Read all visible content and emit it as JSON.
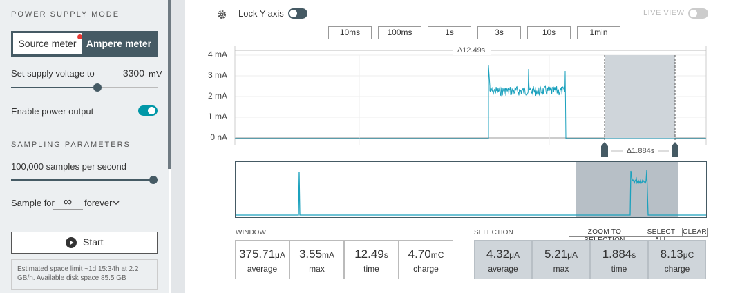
{
  "sidebar": {
    "power_supply_mode": {
      "heading": "POWER SUPPLY MODE",
      "options": [
        "Source meter",
        "Ampere meter"
      ]
    },
    "supply_voltage": {
      "label": "Set supply voltage to",
      "value": "3300",
      "unit": "mV"
    },
    "power_output": {
      "label": "Enable power output"
    },
    "sampling": {
      "heading": "SAMPLING PARAMETERS",
      "rate": "100,000 samples per second",
      "sample_for": "Sample for",
      "duration_value": "∞",
      "duration_unit": "forever"
    },
    "start": "Start",
    "info": "Estimated space limit ~1d 15:34h at 2.2 GB/h. Available disk space 85.5 GB"
  },
  "toolbar": {
    "lock_y": "Lock Y-axis",
    "live_view": "LIVE VIEW",
    "windows": [
      "10ms",
      "100ms",
      "1s",
      "3s",
      "10s",
      "1min"
    ]
  },
  "plot": {
    "window_span": "Δ12.49s",
    "yticks": [
      "4 mA",
      "3 mA",
      "2 mA",
      "1 mA",
      "0 nA"
    ],
    "selection_span": "Δ1.884s"
  },
  "stats": {
    "window": {
      "heading": "WINDOW",
      "items": [
        {
          "value": "375.71",
          "unit": "μA",
          "label": "average"
        },
        {
          "value": "3.55",
          "unit": "mA",
          "label": "max"
        },
        {
          "value": "12.49",
          "unit": "s",
          "label": "time"
        },
        {
          "value": "4.70",
          "unit": "mC",
          "label": "charge"
        }
      ]
    },
    "selection": {
      "heading": "SELECTION",
      "buttons": [
        "ZOOM TO SELECTION",
        "SELECT ALL",
        "CLEAR"
      ],
      "items": [
        {
          "value": "4.32",
          "unit": "μA",
          "label": "average"
        },
        {
          "value": "5.21",
          "unit": "μA",
          "label": "max"
        },
        {
          "value": "1.884",
          "unit": "s",
          "label": "time"
        },
        {
          "value": "8.13",
          "unit": "μC",
          "label": "charge"
        }
      ]
    }
  }
}
